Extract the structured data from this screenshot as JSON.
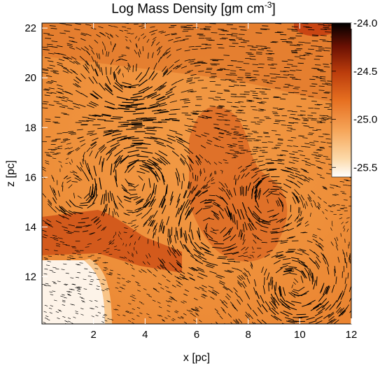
{
  "chart_data": {
    "type": "heatmap",
    "title": "Log Mass Density [gm cm",
    "title_exponent": "-3",
    "title_suffix": "]",
    "xlabel": "x [pc]",
    "ylabel": "z [pc]",
    "xlim": [
      0,
      12
    ],
    "ylim": [
      10.1,
      22.2
    ],
    "x_ticks": [
      "2",
      "4",
      "6",
      "8",
      "10",
      "12"
    ],
    "y_ticks": [
      "12",
      "14",
      "16",
      "18",
      "20",
      "22"
    ],
    "colorbar": {
      "range": [
        -25.6,
        -24.0
      ],
      "ticks": [
        "-24.0",
        "-24.5",
        "-25.0",
        "-25.5"
      ],
      "colors": [
        "#ffffff",
        "#fbc98a",
        "#f0902c",
        "#d95a12",
        "#a62c08",
        "#5c0d02",
        "#000000"
      ]
    },
    "overlay": "velocity vectors (black streaklines)",
    "notable_features": [
      {
        "label": "low-density region",
        "x_range": [
          0,
          2.6
        ],
        "z_range": [
          10.1,
          12.8
        ],
        "value": -25.6
      },
      {
        "label": "dense filament",
        "x_range": [
          0,
          3
        ],
        "z_range": [
          13.2,
          14.6
        ],
        "value": -24.7
      },
      {
        "label": "dense plume",
        "x_range": [
          5,
          8
        ],
        "z_range": [
          13,
          18.5
        ],
        "value": -24.8
      }
    ]
  }
}
